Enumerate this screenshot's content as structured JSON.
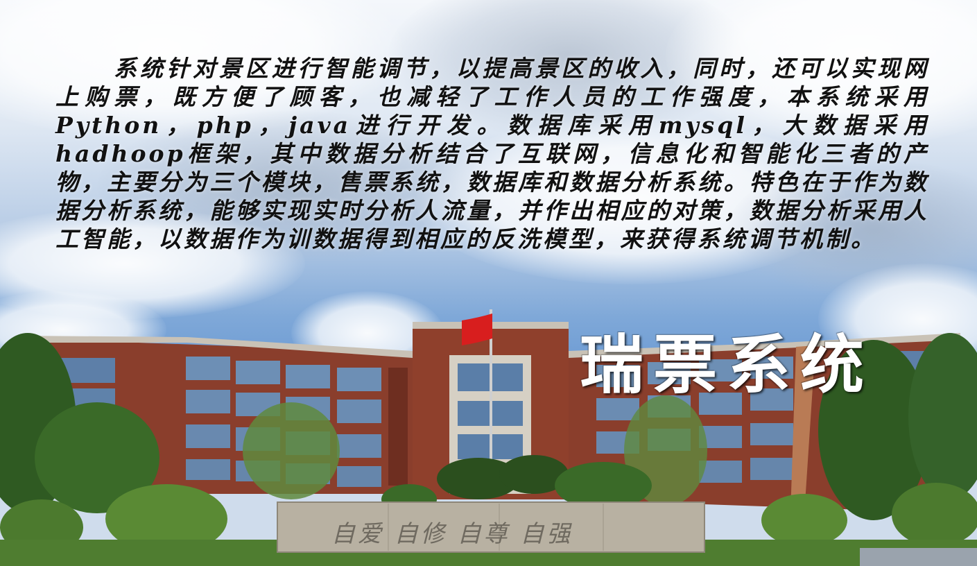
{
  "intro": {
    "text": "系统针对景区进行智能调节，以提高景区的收入，同时，还可以实现网上购票，既方便了顾客，也减轻了工作人员的工作强度，本系统采用Python，php，java进行开发。数据库采用mysql，大数据采用hadhoop框架，其中数据分析结合了互联网，信息化和智能化三者的产物，主要分为三个模块，售票系统，数据库和数据分析系统。特色在于作为数据分析系统，能够实现实时分析人流量，并作出相应的对策，数据分析采用人工智能，以数据作为训数据得到相应的反洗模型，来获得系统调节机制。"
  },
  "title": {
    "text": "瑞票系统"
  },
  "monument": {
    "text": "自爱 自修 自尊 自强"
  },
  "colors": {
    "brick": "#8a3e2c",
    "brick_dark": "#6e2e20",
    "glass": "#5d7fa8",
    "foliage": "#2f5a22",
    "flag": "#d81e1e"
  }
}
